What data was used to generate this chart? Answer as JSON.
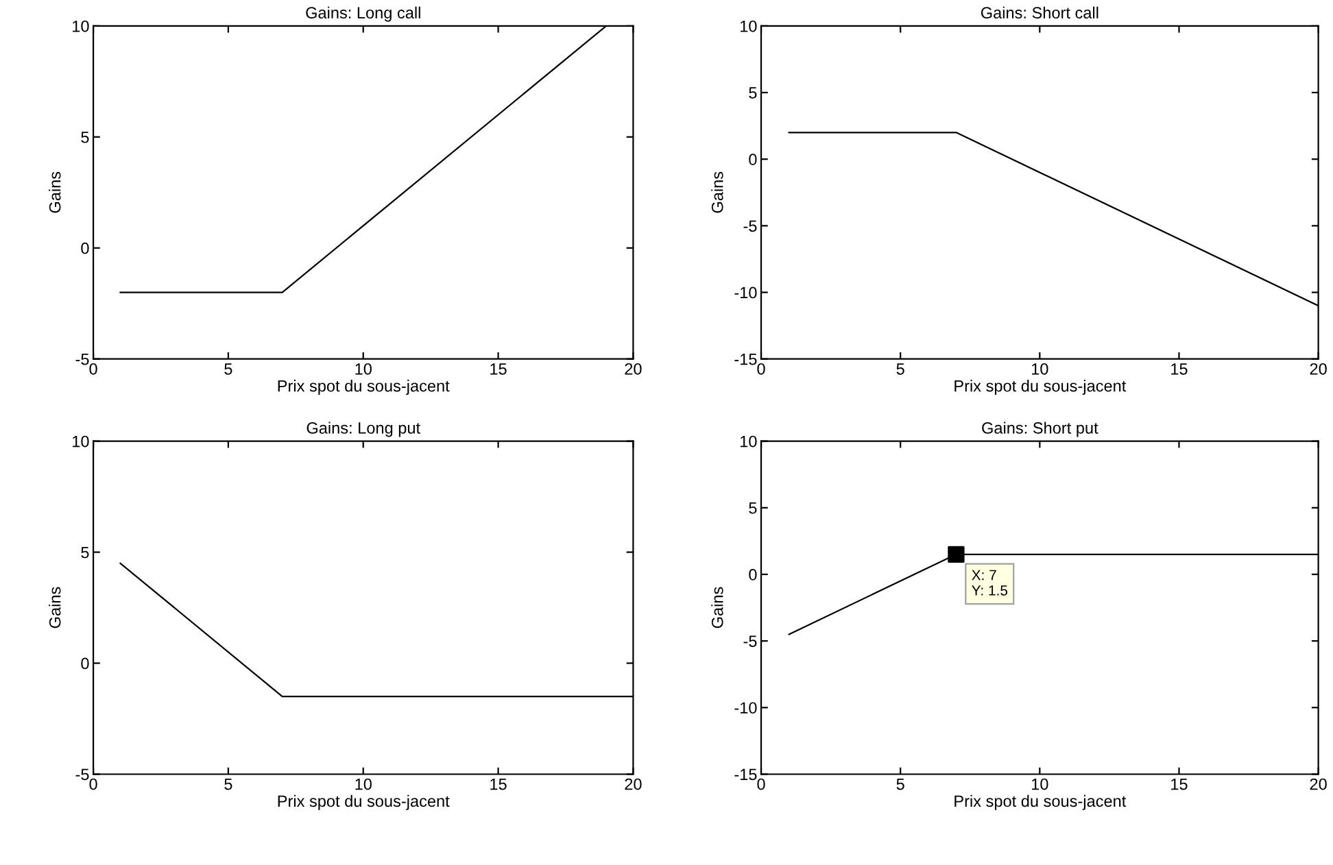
{
  "chart_data": [
    {
      "type": "line",
      "title": "Gains: Long call",
      "xlabel": "Prix spot du sous-jacent",
      "ylabel": "Gains",
      "x": [
        1,
        7,
        19
      ],
      "series": [
        {
          "color": "#000000",
          "values": [
            -2,
            -2,
            10
          ]
        }
      ],
      "xlim": [
        0,
        20
      ],
      "xticks": [
        0,
        5,
        10,
        15,
        20
      ],
      "ylim": [
        -5,
        10
      ],
      "yticks": [
        -5,
        0,
        5,
        10
      ],
      "grid": false,
      "legend": false
    },
    {
      "type": "line",
      "title": "Gains: Short call",
      "xlabel": "Prix spot du sous-jacent",
      "ylabel": "Gains",
      "x": [
        1,
        7,
        20
      ],
      "series": [
        {
          "color": "#000000",
          "values": [
            2,
            2,
            -11
          ]
        }
      ],
      "xlim": [
        0,
        20
      ],
      "xticks": [
        0,
        5,
        10,
        15,
        20
      ],
      "ylim": [
        -15,
        10
      ],
      "yticks": [
        -15,
        -10,
        -5,
        0,
        5,
        10
      ],
      "grid": false,
      "legend": false
    },
    {
      "type": "line",
      "title": "Gains: Long put",
      "xlabel": "Prix spot du sous-jacent",
      "ylabel": "Gains",
      "x": [
        1,
        7,
        20
      ],
      "series": [
        {
          "color": "#000000",
          "values": [
            4.5,
            -1.5,
            -1.5
          ]
        }
      ],
      "xlim": [
        0,
        20
      ],
      "xticks": [
        0,
        5,
        10,
        15,
        20
      ],
      "ylim": [
        -5,
        10
      ],
      "yticks": [
        -5,
        0,
        5,
        10
      ],
      "grid": false,
      "legend": false
    },
    {
      "type": "line",
      "title": "Gains: Short put",
      "xlabel": "Prix spot du sous-jacent",
      "ylabel": "Gains",
      "x": [
        1,
        7,
        20
      ],
      "series": [
        {
          "color": "#000000",
          "values": [
            -4.5,
            1.5,
            1.5
          ]
        },
        {
          "type": "scatter",
          "marker": "square",
          "color": "#000000",
          "x": [
            7
          ],
          "values": [
            1.5
          ]
        }
      ],
      "annotations": [
        {
          "text": "X: 7\nY: 1.5",
          "x": 7,
          "y": 1.5
        }
      ],
      "xlim": [
        0,
        20
      ],
      "xticks": [
        0,
        5,
        10,
        15,
        20
      ],
      "ylim": [
        -15,
        10
      ],
      "yticks": [
        -15,
        -10,
        -5,
        0,
        5,
        10
      ],
      "grid": false,
      "legend": false
    }
  ]
}
